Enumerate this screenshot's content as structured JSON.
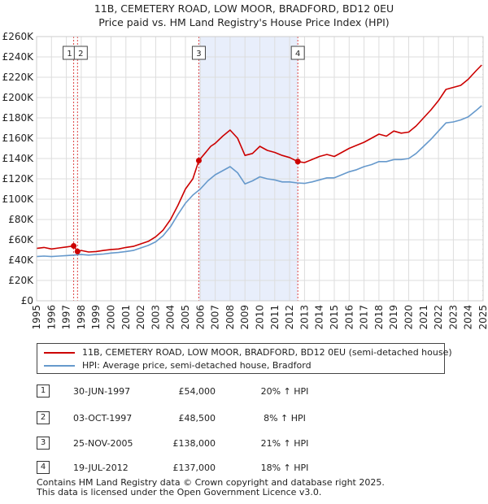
{
  "chart_data": {
    "type": "line",
    "title": "11B, CEMETERY ROAD, LOW MOOR, BRADFORD, BD12 0EU",
    "subtitle": "Price paid vs. HM Land Registry's House Price Index (HPI)",
    "xlabel": "",
    "ylabel": "",
    "xlim": [
      1995,
      2025
    ],
    "ylim": [
      0,
      260000
    ],
    "x_ticks": [
      1995,
      1996,
      1997,
      1998,
      1999,
      2000,
      2001,
      2002,
      2003,
      2004,
      2005,
      2006,
      2007,
      2008,
      2009,
      2010,
      2011,
      2012,
      2013,
      2014,
      2015,
      2016,
      2017,
      2018,
      2019,
      2020,
      2021,
      2022,
      2023,
      2024,
      2025
    ],
    "y_ticks": [
      0,
      20000,
      40000,
      60000,
      80000,
      100000,
      120000,
      140000,
      160000,
      180000,
      200000,
      220000,
      240000,
      260000
    ],
    "y_tick_labels": [
      "£0",
      "£20K",
      "£40K",
      "£60K",
      "£80K",
      "£100K",
      "£120K",
      "£140K",
      "£160K",
      "£180K",
      "£200K",
      "£220K",
      "£240K",
      "£260K"
    ],
    "grid": true,
    "series": [
      {
        "name": "11B, CEMETERY ROAD, LOW MOOR, BRADFORD, BD12 0EU (semi-detached house)",
        "color": "#cc0000",
        "points": [
          [
            1995.0,
            51500
          ],
          [
            1995.5,
            52500
          ],
          [
            1996.0,
            51000
          ],
          [
            1996.5,
            52000
          ],
          [
            1997.0,
            53000
          ],
          [
            1997.5,
            54000
          ],
          [
            1997.75,
            48500
          ],
          [
            1998.0,
            49500
          ],
          [
            1998.5,
            48000
          ],
          [
            1999.0,
            48500
          ],
          [
            1999.5,
            49500
          ],
          [
            2000.0,
            50500
          ],
          [
            2000.5,
            51000
          ],
          [
            2001.0,
            52500
          ],
          [
            2001.5,
            53500
          ],
          [
            2002.0,
            56000
          ],
          [
            2002.5,
            58500
          ],
          [
            2003.0,
            63000
          ],
          [
            2003.5,
            69500
          ],
          [
            2004.0,
            80000
          ],
          [
            2004.5,
            94000
          ],
          [
            2005.0,
            110000
          ],
          [
            2005.5,
            120000
          ],
          [
            2005.9,
            138000
          ],
          [
            2006.3,
            145000
          ],
          [
            2006.7,
            152000
          ],
          [
            2007.0,
            155000
          ],
          [
            2007.5,
            162000
          ],
          [
            2008.0,
            168000
          ],
          [
            2008.5,
            160000
          ],
          [
            2009.0,
            143000
          ],
          [
            2009.5,
            145000
          ],
          [
            2010.0,
            152000
          ],
          [
            2010.5,
            148000
          ],
          [
            2011.0,
            146000
          ],
          [
            2011.5,
            143000
          ],
          [
            2012.0,
            141000
          ],
          [
            2012.55,
            137000
          ],
          [
            2013.0,
            136000
          ],
          [
            2013.5,
            139000
          ],
          [
            2014.0,
            142000
          ],
          [
            2014.5,
            144000
          ],
          [
            2015.0,
            142000
          ],
          [
            2015.5,
            146000
          ],
          [
            2016.0,
            150000
          ],
          [
            2016.5,
            153000
          ],
          [
            2017.0,
            156000
          ],
          [
            2017.5,
            160000
          ],
          [
            2018.0,
            164000
          ],
          [
            2018.5,
            162000
          ],
          [
            2019.0,
            167000
          ],
          [
            2019.5,
            165000
          ],
          [
            2020.0,
            166000
          ],
          [
            2020.5,
            172000
          ],
          [
            2021.0,
            180000
          ],
          [
            2021.5,
            188000
          ],
          [
            2022.0,
            197000
          ],
          [
            2022.5,
            208000
          ],
          [
            2023.0,
            210000
          ],
          [
            2023.5,
            212000
          ],
          [
            2024.0,
            218000
          ],
          [
            2024.5,
            226000
          ],
          [
            2024.9,
            232000
          ]
        ]
      },
      {
        "name": "HPI: Average price, semi-detached house, Bradford",
        "color": "#6699cc",
        "points": [
          [
            1995.0,
            43500
          ],
          [
            1995.5,
            44000
          ],
          [
            1996.0,
            43500
          ],
          [
            1996.5,
            44000
          ],
          [
            1997.0,
            44500
          ],
          [
            1997.5,
            45000
          ],
          [
            1998.0,
            45500
          ],
          [
            1998.5,
            45000
          ],
          [
            1999.0,
            45500
          ],
          [
            1999.5,
            46000
          ],
          [
            2000.0,
            47000
          ],
          [
            2000.5,
            47500
          ],
          [
            2001.0,
            48500
          ],
          [
            2001.5,
            49500
          ],
          [
            2002.0,
            52000
          ],
          [
            2002.5,
            54500
          ],
          [
            2003.0,
            58000
          ],
          [
            2003.5,
            64000
          ],
          [
            2004.0,
            73000
          ],
          [
            2004.5,
            85000
          ],
          [
            2005.0,
            96000
          ],
          [
            2005.5,
            104000
          ],
          [
            2006.0,
            110000
          ],
          [
            2006.5,
            118000
          ],
          [
            2007.0,
            124000
          ],
          [
            2007.5,
            128000
          ],
          [
            2008.0,
            132000
          ],
          [
            2008.5,
            126000
          ],
          [
            2009.0,
            115000
          ],
          [
            2009.5,
            118000
          ],
          [
            2010.0,
            122000
          ],
          [
            2010.5,
            120000
          ],
          [
            2011.0,
            119000
          ],
          [
            2011.5,
            117000
          ],
          [
            2012.0,
            117000
          ],
          [
            2012.5,
            116000
          ],
          [
            2013.0,
            115500
          ],
          [
            2013.5,
            117000
          ],
          [
            2014.0,
            119000
          ],
          [
            2014.5,
            121000
          ],
          [
            2015.0,
            121000
          ],
          [
            2015.5,
            124000
          ],
          [
            2016.0,
            127000
          ],
          [
            2016.5,
            129000
          ],
          [
            2017.0,
            132000
          ],
          [
            2017.5,
            134000
          ],
          [
            2018.0,
            137000
          ],
          [
            2018.5,
            137000
          ],
          [
            2019.0,
            139000
          ],
          [
            2019.5,
            139000
          ],
          [
            2020.0,
            140000
          ],
          [
            2020.5,
            145000
          ],
          [
            2021.0,
            152000
          ],
          [
            2021.5,
            159000
          ],
          [
            2022.0,
            167000
          ],
          [
            2022.5,
            175000
          ],
          [
            2023.0,
            176000
          ],
          [
            2023.5,
            178000
          ],
          [
            2024.0,
            181000
          ],
          [
            2024.5,
            187000
          ],
          [
            2024.9,
            192000
          ]
        ]
      }
    ],
    "sales": [
      {
        "num": "1",
        "x": 1997.49,
        "value": 54000
      },
      {
        "num": "2",
        "x": 1997.75,
        "value": 48500
      },
      {
        "num": "3",
        "x": 2005.9,
        "value": 138000
      },
      {
        "num": "4",
        "x": 2012.55,
        "value": 137000
      }
    ],
    "shaded_span": [
      2005.9,
      2012.55
    ],
    "hatched_from": 2024.95
  },
  "legend": {
    "price_label": "11B, CEMETERY ROAD, LOW MOOR, BRADFORD, BD12 0EU (semi-detached house)",
    "hpi_label": "HPI: Average price, semi-detached house, Bradford"
  },
  "transactions": [
    {
      "num": "1",
      "date": "30-JUN-1997",
      "price": "£54,000",
      "hpi": "20% ↑ HPI"
    },
    {
      "num": "2",
      "date": "03-OCT-1997",
      "price": "£48,500",
      "hpi": "8% ↑ HPI"
    },
    {
      "num": "3",
      "date": "25-NOV-2005",
      "price": "£138,000",
      "hpi": "21% ↑ HPI"
    },
    {
      "num": "4",
      "date": "19-JUL-2012",
      "price": "£137,000",
      "hpi": "18% ↑ HPI"
    }
  ],
  "footer": {
    "line1": "Contains HM Land Registry data © Crown copyright and database right 2025.",
    "line2": "This data is licensed under the Open Government Licence v3.0."
  },
  "colors": {
    "price": "#cc0000",
    "hpi": "#6699cc",
    "grid": "#dddddd",
    "shade": "#e8eefb"
  }
}
